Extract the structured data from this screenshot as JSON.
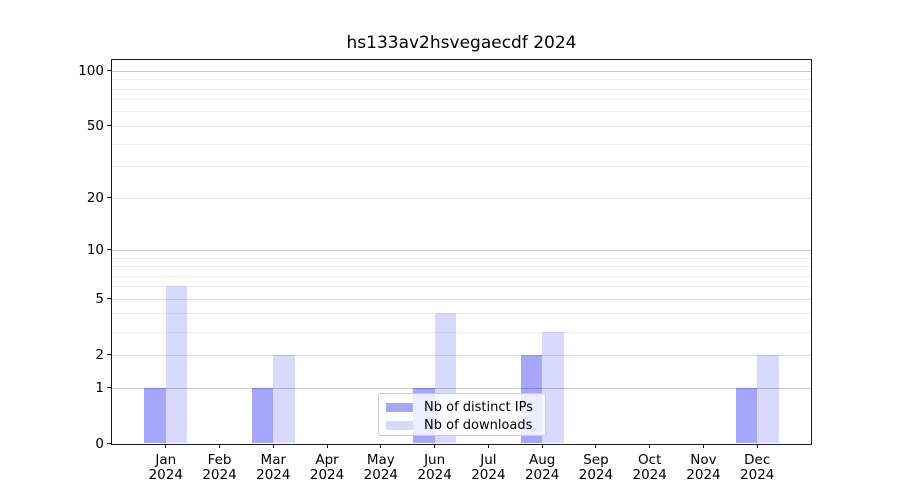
{
  "chart_data": {
    "type": "bar",
    "title": "hs133av2hsvegaecdf 2024",
    "year_label": "2024",
    "categories": [
      "Jan",
      "Feb",
      "Mar",
      "Apr",
      "May",
      "Jun",
      "Jul",
      "Aug",
      "Sep",
      "Oct",
      "Nov",
      "Dec"
    ],
    "series": [
      {
        "name": "Nb of distinct IPs",
        "color": "rgba(0,0,255,0.35)",
        "color_hex_on_white": "#a6a6ff",
        "values": [
          1,
          0,
          1,
          0,
          0,
          1,
          0,
          2,
          0,
          0,
          0,
          1
        ]
      },
      {
        "name": "Nb of downloads",
        "color": "rgba(0,0,255,0.15)",
        "color_hex_on_white": "#d9d9ff",
        "values": [
          6,
          0,
          2,
          0,
          0,
          4,
          0,
          3,
          0,
          0,
          0,
          2
        ]
      }
    ],
    "yscale": "log1p",
    "ylim": [
      0,
      114
    ],
    "yticks": [
      0,
      1,
      2,
      5,
      10,
      20,
      50,
      100
    ],
    "yticks_mid": [
      2,
      5,
      20,
      50
    ],
    "yticks_minor": [
      3,
      4,
      6,
      7,
      8,
      9,
      30,
      40,
      60,
      70,
      80,
      90
    ],
    "grid": "horizontal",
    "legend_position": "lower-center-inside"
  },
  "colors": {
    "major_grid": "#c8c8c8",
    "mid_grid": "#dedede",
    "minor_grid": "#eeeeee",
    "spine": "#1a1a1a",
    "background": "#ffffff"
  }
}
